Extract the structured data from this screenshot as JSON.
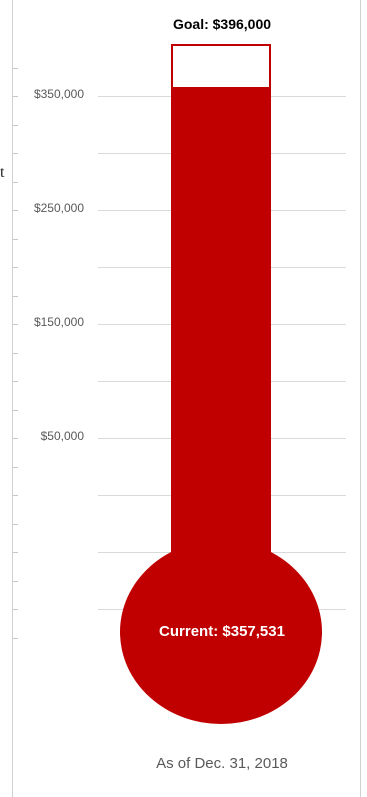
{
  "chart_data": {
    "type": "bar",
    "goal_label": "Goal: $396,000",
    "goal": 396000,
    "current": 357531,
    "current_label": "Current: $357,531",
    "date_label": "As of Dec. 31, 2018",
    "y_tick_labels": [
      "$350,000",
      "$250,000",
      "$150,000",
      "$50,000"
    ],
    "y_tick_values": [
      350000,
      250000,
      150000,
      50000
    ],
    "ylim": [
      -100000,
      396000
    ],
    "stray_text": "t",
    "colors": {
      "fill": "#c00000",
      "grid": "#d9d9d9",
      "label": "#595959"
    }
  }
}
